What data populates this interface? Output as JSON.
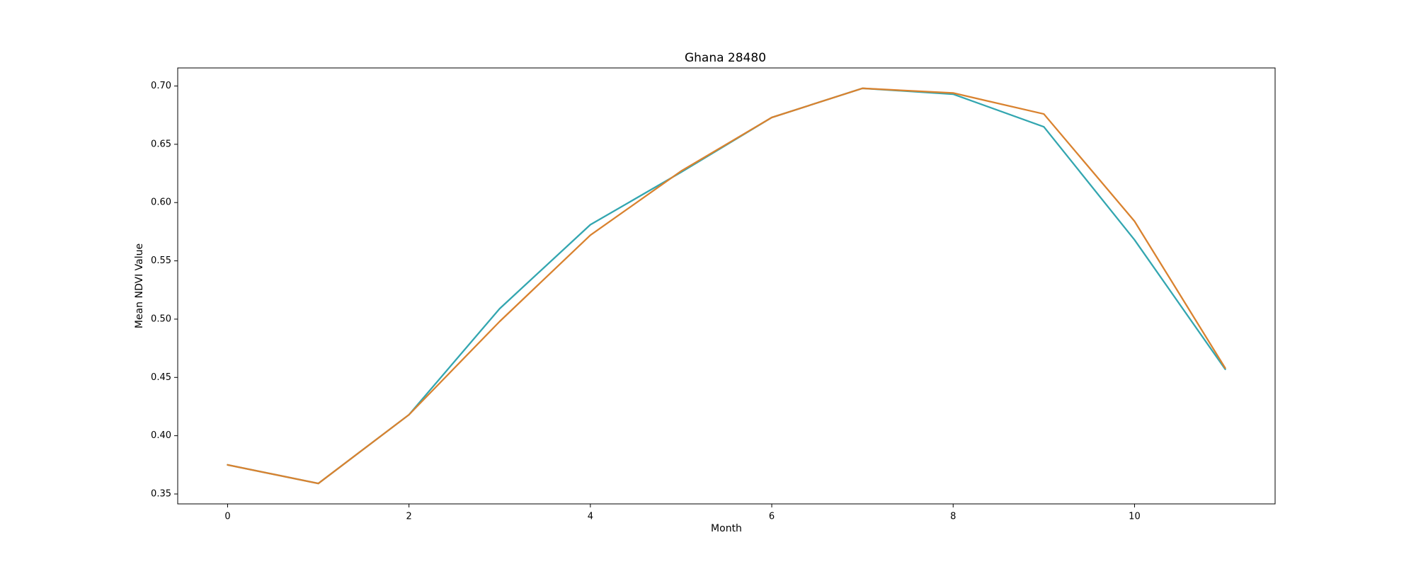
{
  "chart_data": {
    "type": "line",
    "title": "Ghana 28480",
    "xlabel": "Month",
    "ylabel": "Mean NDVI Value",
    "xlim": [
      -0.55,
      11.55
    ],
    "ylim": [
      0.3415,
      0.7155
    ],
    "x_ticks": [
      0,
      2,
      4,
      6,
      8,
      10
    ],
    "y_ticks": [
      0.35,
      0.4,
      0.45,
      0.5,
      0.55,
      0.6,
      0.65,
      0.7
    ],
    "x_tick_labels": [
      "0",
      "2",
      "4",
      "6",
      "8",
      "10"
    ],
    "y_tick_labels": [
      "0.35",
      "0.40",
      "0.45",
      "0.50",
      "0.55",
      "0.60",
      "0.65",
      "0.70"
    ],
    "grid": false,
    "legend": "none",
    "x": [
      0,
      1,
      2,
      3,
      4,
      5,
      6,
      7,
      8,
      9,
      10,
      11
    ],
    "series": [
      {
        "color": "#33a6b0",
        "values": [
          0.375,
          0.359,
          0.418,
          0.509,
          0.581,
          0.626,
          0.673,
          0.698,
          0.693,
          0.665,
          0.568,
          0.457
        ]
      },
      {
        "color": "#d9822f",
        "values": [
          0.375,
          0.359,
          0.418,
          0.498,
          0.572,
          0.627,
          0.673,
          0.698,
          0.694,
          0.676,
          0.584,
          0.458
        ]
      }
    ]
  }
}
